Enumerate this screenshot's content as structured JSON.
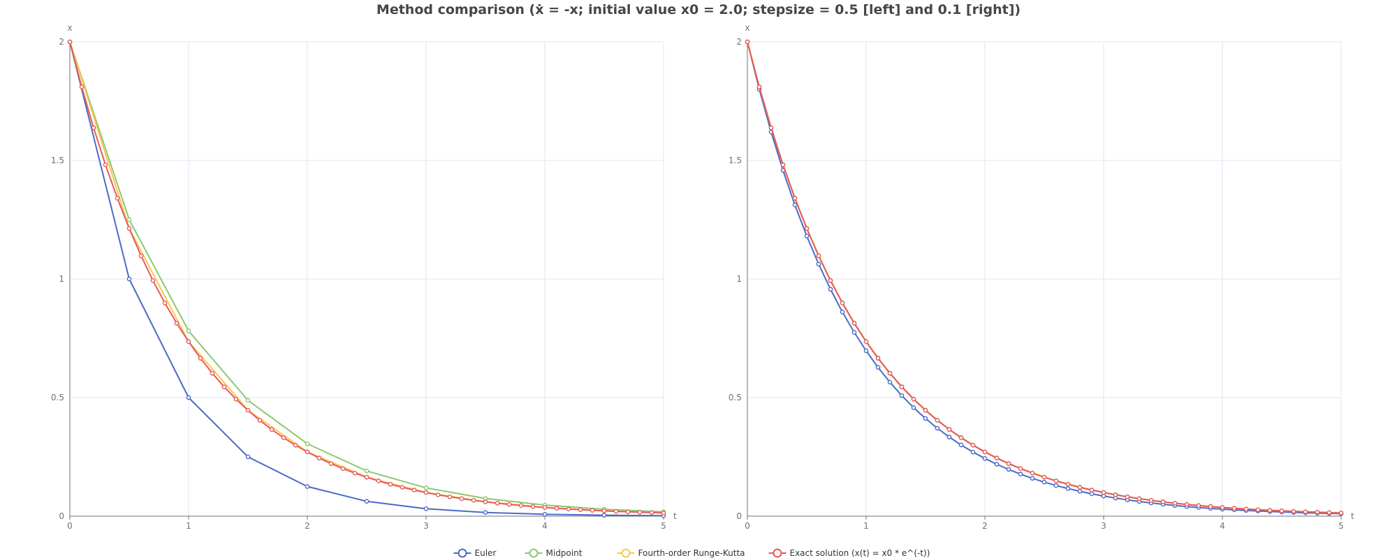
{
  "chart_data": {
    "title": "Method comparison (ẋ = -x; initial value x0 = 2.0; stepsize = 0.5 [left] and 0.1 [right])",
    "type": "line",
    "colors": {
      "euler": "#4a6ac8",
      "midpoint": "#8cc870",
      "rk4": "#f8c850",
      "exact": "#e85858"
    },
    "legend": {
      "placement": "bottom-center",
      "entries": [
        {
          "key": "euler",
          "name": "Euler"
        },
        {
          "key": "midpoint",
          "name": "Midpoint"
        },
        {
          "key": "rk4",
          "name": "Fourth-order Runge-Kutta"
        },
        {
          "key": "exact",
          "name": "Exact solution (x(t) = x0 * e^(-t))"
        }
      ]
    },
    "panels": [
      {
        "name": "left",
        "stepsize": 0.5,
        "xlabel": "t",
        "ylabel": "x",
        "xlim": [
          0,
          5
        ],
        "ylim": [
          0,
          2
        ],
        "x_ticks": [
          "0",
          "1",
          "2",
          "3",
          "4",
          "5"
        ],
        "y_ticks": [
          "0",
          "0.5",
          "1",
          "1.5",
          "2"
        ],
        "grid": true,
        "series": [
          {
            "key": "euler",
            "name": "Euler",
            "x": [
              0,
              0.5,
              1,
              1.5,
              2,
              2.5,
              3,
              3.5,
              4,
              4.5,
              5
            ],
            "y": [
              2,
              1,
              0.5,
              0.25,
              0.125,
              0.0625,
              0.03125,
              0.01563,
              0.00781,
              0.00391,
              0.00195
            ]
          },
          {
            "key": "midpoint",
            "name": "Midpoint",
            "x": [
              0,
              0.5,
              1,
              1.5,
              2,
              2.5,
              3,
              3.5,
              4,
              4.5,
              5
            ],
            "y": [
              2,
              1.25,
              0.78125,
              0.48828,
              0.30518,
              0.19073,
              0.11921,
              0.07451,
              0.04657,
              0.0291,
              0.01819
            ]
          },
          {
            "key": "rk4",
            "name": "Fourth-order Runge-Kutta",
            "x": [
              0,
              0.5,
              1,
              1.5,
              2,
              2.5,
              3,
              3.5,
              4,
              4.5,
              5
            ],
            "y": [
              2,
              1.21354,
              0.73634,
              0.4468,
              0.2711,
              0.1645,
              0.09981,
              0.06056,
              0.03675,
              0.0223,
              0.01353
            ]
          },
          {
            "key": "exact",
            "name": "Exact solution (x(t) = x0 * e^(-t))",
            "x": [
              0,
              0.1,
              0.2,
              0.3,
              0.4,
              0.5,
              0.6,
              0.7,
              0.8,
              0.9,
              1,
              1.1,
              1.2,
              1.3,
              1.4,
              1.5,
              1.6,
              1.7,
              1.8,
              1.9,
              2,
              2.1,
              2.2,
              2.3,
              2.4,
              2.5,
              2.6,
              2.7,
              2.8,
              2.9,
              3,
              3.1,
              3.2,
              3.3,
              3.4,
              3.5,
              3.6,
              3.7,
              3.8,
              3.9,
              4,
              4.1,
              4.2,
              4.3,
              4.4,
              4.5,
              4.6,
              4.7,
              4.8,
              4.9,
              5
            ],
            "y": [
              2,
              1.8097,
              1.6375,
              1.4816,
              1.3406,
              1.2131,
              1.0976,
              0.9932,
              0.8987,
              0.8131,
              0.7358,
              0.6657,
              0.6024,
              0.5451,
              0.4932,
              0.4463,
              0.4038,
              0.3654,
              0.3306,
              0.2991,
              0.2707,
              0.2449,
              0.2216,
              0.2005,
              0.1814,
              0.1642,
              0.1486,
              0.1344,
              0.1216,
              0.11,
              0.0996,
              0.0901,
              0.0815,
              0.0738,
              0.0667,
              0.0604,
              0.0546,
              0.0494,
              0.0447,
              0.0405,
              0.0366,
              0.0331,
              0.03,
              0.0271,
              0.0245,
              0.0222,
              0.0201,
              0.0182,
              0.0165,
              0.0149,
              0.0135
            ]
          }
        ]
      },
      {
        "name": "right",
        "stepsize": 0.1,
        "xlabel": "t",
        "ylabel": "x",
        "xlim": [
          0,
          5
        ],
        "ylim": [
          0,
          2
        ],
        "x_ticks": [
          "0",
          "1",
          "2",
          "3",
          "4",
          "5"
        ],
        "y_ticks": [
          "0",
          "0.5",
          "1",
          "1.5",
          "2"
        ],
        "grid": true,
        "series": [
          {
            "key": "euler",
            "name": "Euler",
            "x": [
              0,
              0.1,
              0.2,
              0.3,
              0.4,
              0.5,
              0.6,
              0.7,
              0.8,
              0.9,
              1,
              1.1,
              1.2,
              1.3,
              1.4,
              1.5,
              1.6,
              1.7,
              1.8,
              1.9,
              2,
              2.1,
              2.2,
              2.3,
              2.4,
              2.5,
              2.6,
              2.7,
              2.8,
              2.9,
              3,
              3.1,
              3.2,
              3.3,
              3.4,
              3.5,
              3.6,
              3.7,
              3.8,
              3.9,
              4,
              4.1,
              4.2,
              4.3,
              4.4,
              4.5,
              4.6,
              4.7,
              4.8,
              4.9,
              5
            ],
            "y": [
              2,
              1.8,
              1.62,
              1.458,
              1.3122,
              1.181,
              1.0629,
              0.9566,
              0.8609,
              0.7748,
              0.6974,
              0.6276,
              0.5649,
              0.5084,
              0.4575,
              0.4118,
              0.3706,
              0.3335,
              0.3002,
              0.2702,
              0.2432,
              0.2188,
              0.197,
              0.1773,
              0.1595,
              0.1436,
              0.1292,
              0.1163,
              0.1047,
              0.0942,
              0.0848,
              0.0763,
              0.0687,
              0.0618,
              0.0556,
              0.0501,
              0.0451,
              0.0406,
              0.0365,
              0.0328,
              0.0296,
              0.0266,
              0.0239,
              0.0216,
              0.0194,
              0.0175,
              0.0157,
              0.0141,
              0.0127,
              0.0115,
              0.0103
            ]
          },
          {
            "key": "midpoint",
            "name": "Midpoint",
            "x": [
              0,
              0.1,
              0.2,
              0.3,
              0.4,
              0.5,
              0.6,
              0.7,
              0.8,
              0.9,
              1,
              1.1,
              1.2,
              1.3,
              1.4,
              1.5,
              1.6,
              1.7,
              1.8,
              1.9,
              2,
              2.1,
              2.2,
              2.3,
              2.4,
              2.5,
              2.6,
              2.7,
              2.8,
              2.9,
              3,
              3.1,
              3.2,
              3.3,
              3.4,
              3.5,
              3.6,
              3.7,
              3.8,
              3.9,
              4,
              4.1,
              4.2,
              4.3,
              4.4,
              4.5,
              4.6,
              4.7,
              4.8,
              4.9,
              5
            ],
            "y": [
              2,
              1.81,
              1.6381,
              1.4825,
              1.3416,
              1.2142,
              1.0988,
              0.9944,
              0.8999,
              0.8145,
              0.7371,
              0.6671,
              0.6037,
              0.5463,
              0.4944,
              0.4475,
              0.4049,
              0.3665,
              0.3317,
              0.3002,
              0.2716,
              0.2458,
              0.2225,
              0.2013,
              0.1822,
              0.1649,
              0.1492,
              0.1351,
              0.1222,
              0.1106,
              0.1001,
              0.0906,
              0.082,
              0.0742,
              0.0672,
              0.0608,
              0.055,
              0.0498,
              0.045,
              0.0408,
              0.0369,
              0.0334,
              0.0302,
              0.0273,
              0.0247,
              0.0224,
              0.0203,
              0.0183,
              0.0166,
              0.015,
              0.0136
            ]
          },
          {
            "key": "rk4",
            "name": "Fourth-order Runge-Kutta",
            "x": [
              0,
              0.1,
              0.2,
              0.3,
              0.4,
              0.5,
              0.6,
              0.7,
              0.8,
              0.9,
              1,
              1.1,
              1.2,
              1.3,
              1.4,
              1.5,
              1.6,
              1.7,
              1.8,
              1.9,
              2,
              2.1,
              2.2,
              2.3,
              2.4,
              2.5,
              2.6,
              2.7,
              2.8,
              2.9,
              3,
              3.1,
              3.2,
              3.3,
              3.4,
              3.5,
              3.6,
              3.7,
              3.8,
              3.9,
              4,
              4.1,
              4.2,
              4.3,
              4.4,
              4.5,
              4.6,
              4.7,
              4.8,
              4.9,
              5
            ],
            "y": [
              2,
              1.8097,
              1.6375,
              1.4816,
              1.3406,
              1.2131,
              1.0976,
              0.9932,
              0.8987,
              0.8131,
              0.7358,
              0.6657,
              0.6024,
              0.5451,
              0.4932,
              0.4463,
              0.4038,
              0.3654,
              0.3306,
              0.2991,
              0.2707,
              0.2449,
              0.2216,
              0.2005,
              0.1814,
              0.1642,
              0.1486,
              0.1344,
              0.1216,
              0.11,
              0.0996,
              0.0901,
              0.0815,
              0.0738,
              0.0667,
              0.0604,
              0.0546,
              0.0494,
              0.0447,
              0.0405,
              0.0366,
              0.0331,
              0.03,
              0.0271,
              0.0245,
              0.0222,
              0.0201,
              0.0182,
              0.0165,
              0.0149,
              0.0135
            ]
          },
          {
            "key": "exact",
            "name": "Exact solution (x(t) = x0 * e^(-t))",
            "x": [
              0,
              0.1,
              0.2,
              0.3,
              0.4,
              0.5,
              0.6,
              0.7,
              0.8,
              0.9,
              1,
              1.1,
              1.2,
              1.3,
              1.4,
              1.5,
              1.6,
              1.7,
              1.8,
              1.9,
              2,
              2.1,
              2.2,
              2.3,
              2.4,
              2.5,
              2.6,
              2.7,
              2.8,
              2.9,
              3,
              3.1,
              3.2,
              3.3,
              3.4,
              3.5,
              3.6,
              3.7,
              3.8,
              3.9,
              4,
              4.1,
              4.2,
              4.3,
              4.4,
              4.5,
              4.6,
              4.7,
              4.8,
              4.9,
              5
            ],
            "y": [
              2,
              1.8097,
              1.6375,
              1.4816,
              1.3406,
              1.2131,
              1.0976,
              0.9932,
              0.8987,
              0.8131,
              0.7358,
              0.6657,
              0.6024,
              0.5451,
              0.4932,
              0.4463,
              0.4038,
              0.3654,
              0.3306,
              0.2991,
              0.2707,
              0.2449,
              0.2216,
              0.2005,
              0.1814,
              0.1642,
              0.1486,
              0.1344,
              0.1216,
              0.11,
              0.0996,
              0.0901,
              0.0815,
              0.0738,
              0.0667,
              0.0604,
              0.0546,
              0.0494,
              0.0447,
              0.0405,
              0.0366,
              0.0331,
              0.03,
              0.0271,
              0.0245,
              0.0222,
              0.0201,
              0.0182,
              0.0165,
              0.0149,
              0.0135
            ]
          }
        ]
      }
    ]
  }
}
